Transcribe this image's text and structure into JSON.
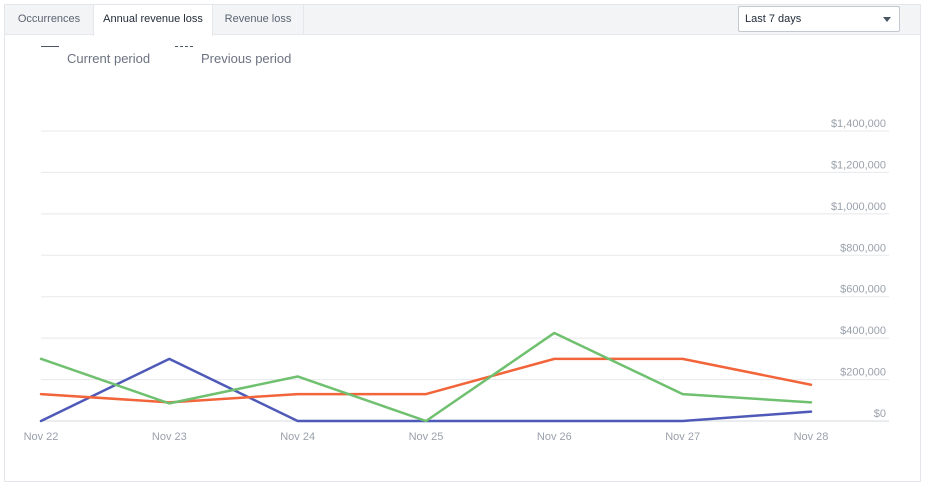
{
  "tabs": [
    {
      "label": "Occurrences",
      "active": false
    },
    {
      "label": "Annual revenue loss",
      "active": true
    },
    {
      "label": "Revenue loss",
      "active": false
    }
  ],
  "period_select": {
    "value": "Last 7 days"
  },
  "legend": {
    "current_label": "Current period",
    "previous_label": "Previous period"
  },
  "colors": {
    "series_blue": "#4f5ab8",
    "series_orange": "#f2643a",
    "series_green": "#6fc06f",
    "grid": "#e6e8ec",
    "axis_text": "#9aa1ab"
  },
  "chart_data": {
    "type": "line",
    "x": [
      "Nov 22",
      "Nov 23",
      "Nov 24",
      "Nov 25",
      "Nov 26",
      "Nov 27",
      "Nov 28"
    ],
    "y_ticks": [
      "$0",
      "$200,000",
      "$400,000",
      "$600,000",
      "$800,000",
      "$1,000,000",
      "$1,200,000",
      "$1,400,000"
    ],
    "ylim": [
      0,
      1400000
    ],
    "grid": true,
    "series": [
      {
        "color": "#4f5ab8",
        "values": [
          0,
          300000,
          0,
          0,
          0,
          0,
          45000
        ]
      },
      {
        "color": "#f2643a",
        "values": [
          130000,
          90000,
          130000,
          130000,
          300000,
          300000,
          175000
        ]
      },
      {
        "color": "#6fc06f",
        "values": [
          300000,
          85000,
          215000,
          0,
          425000,
          130000,
          90000
        ]
      }
    ]
  }
}
